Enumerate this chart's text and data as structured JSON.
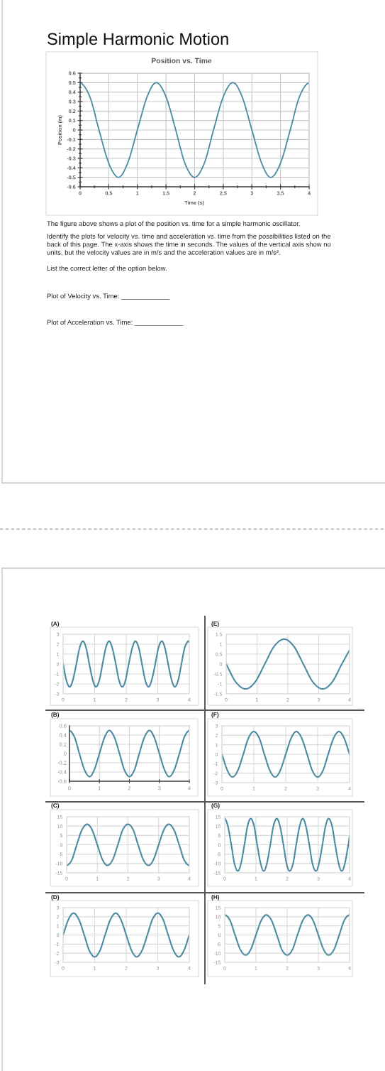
{
  "chart_data": [
    {
      "type": "line",
      "title": "Position vs. Time",
      "xlabel": "Time (s)",
      "ylabel": "Position (m)",
      "annotations": [
        "Simple Harmonic Motion",
        "The figure above shows a plot of the position vs. time for a simple harmonic oscillator.",
        "Identify the plots for velocity vs. time and acceleration vs. time from the possibilities listed on the\nback of this page. The x-axis shows the time in seconds. The values of the vertical axis show no\nunits, but the velocity values are in m/s and the acceleration values are in m/s².",
        "List the correct letter of the option below.",
        "Plot of Velocity vs. Time: _____________",
        "Plot of Acceleration vs. Time: _____________"
      ],
      "x": [
        0,
        0.17,
        0.33,
        0.5,
        0.67,
        0.83,
        1,
        1.17,
        1.33,
        1.5,
        1.67,
        1.83,
        2,
        2.17,
        2.33,
        2.5,
        2.67,
        2.83,
        3,
        3.17,
        3.33,
        3.5,
        3.67,
        3.83,
        4
      ],
      "series": [
        {
          "color": "#4a8aa3",
          "values": [
            0.5,
            0.35,
            0,
            -0.35,
            -0.5,
            -0.35,
            0,
            0.35,
            0.5,
            0.35,
            0,
            -0.35,
            -0.5,
            -0.35,
            0,
            0.35,
            0.5,
            0.35,
            0,
            -0.35,
            -0.5,
            -0.35,
            0,
            0.35,
            0.5
          ]
        }
      ],
      "xlim": [
        0,
        4
      ],
      "ylim": [
        -0.6,
        0.6
      ],
      "xticks": [
        0,
        0.5,
        1,
        1.5,
        2,
        2.5,
        3,
        3.5,
        4
      ],
      "yticks": [
        -0.6,
        -0.5,
        -0.4,
        -0.3,
        -0.2,
        -0.1,
        0,
        0.1,
        0.2,
        0.3,
        0.4,
        0.5,
        0.6
      ],
      "grid": true
    },
    {
      "type": "line",
      "title": "(A)",
      "x": [
        0,
        0.1,
        0.21,
        0.31,
        0.42,
        0.52,
        0.63,
        0.73,
        0.83,
        0.94,
        1.04,
        1.15,
        1.25,
        1.35,
        1.46,
        1.56,
        1.67,
        1.77,
        1.88,
        1.98,
        2.08,
        2.19,
        2.29,
        2.4,
        2.5,
        2.6,
        2.71,
        2.81,
        2.92,
        3.02,
        3.13,
        3.23,
        3.33,
        3.44,
        3.54,
        3.65,
        3.75,
        3.85,
        3.96,
        4
      ],
      "series": [
        {
          "color": "#4a8aa3",
          "values": [
            0,
            -1.6,
            -2.3,
            -1.6,
            0,
            1.6,
            2.3,
            1.6,
            0,
            -1.6,
            -2.3,
            -1.6,
            0,
            1.6,
            2.3,
            1.6,
            0,
            -1.6,
            -2.3,
            -1.6,
            0,
            1.6,
            2.3,
            1.6,
            0,
            -1.6,
            -2.3,
            -1.6,
            0,
            1.6,
            2.3,
            1.6,
            0,
            -1.6,
            -2.3,
            -1.6,
            0,
            1.6,
            2.3,
            2.2
          ]
        }
      ],
      "xlim": [
        0,
        4
      ],
      "ylim": [
        -3,
        3
      ],
      "xticks": [
        0,
        1,
        2,
        3,
        4
      ],
      "yticks": [
        -3,
        -2,
        -1,
        0,
        1,
        2,
        3
      ],
      "grid": true
    },
    {
      "type": "line",
      "title": "(B)",
      "x": [
        0,
        0.17,
        0.33,
        0.5,
        0.67,
        0.83,
        1,
        1.17,
        1.33,
        1.5,
        1.67,
        1.83,
        2,
        2.17,
        2.33,
        2.5,
        2.67,
        2.83,
        3,
        3.17,
        3.33,
        3.5,
        3.67,
        3.83,
        4
      ],
      "series": [
        {
          "color": "#4a8aa3",
          "values": [
            0.5,
            0.35,
            0,
            -0.35,
            -0.5,
            -0.35,
            0,
            0.35,
            0.5,
            0.35,
            0,
            -0.35,
            -0.5,
            -0.35,
            0,
            0.35,
            0.5,
            0.35,
            0,
            -0.35,
            -0.5,
            -0.35,
            0,
            0.35,
            0.5
          ]
        }
      ],
      "xlim": [
        0,
        4
      ],
      "ylim": [
        -0.6,
        0.6
      ],
      "xticks": [
        0,
        1,
        2,
        3,
        4
      ],
      "yticks": [
        -0.6,
        -0.4,
        -0.2,
        0,
        0.2,
        0.4,
        0.6
      ],
      "grid": true
    },
    {
      "type": "line",
      "title": "(C)",
      "x": [
        0,
        0.17,
        0.33,
        0.5,
        0.67,
        0.83,
        1,
        1.17,
        1.33,
        1.5,
        1.67,
        1.83,
        2,
        2.17,
        2.33,
        2.5,
        2.67,
        2.83,
        3,
        3.17,
        3.33,
        3.5,
        3.67,
        3.83,
        4
      ],
      "series": [
        {
          "color": "#4a8aa3",
          "values": [
            -11,
            -8,
            0,
            8,
            11,
            8,
            0,
            -8,
            -11,
            -8,
            0,
            8,
            11,
            8,
            0,
            -8,
            -11,
            -8,
            0,
            8,
            11,
            8,
            0,
            -8,
            -11
          ]
        }
      ],
      "xlim": [
        0,
        4
      ],
      "ylim": [
        -15,
        15
      ],
      "xticks": [
        0,
        1,
        2,
        3,
        4
      ],
      "yticks": [
        -15,
        -10,
        -5,
        0,
        5,
        10,
        15
      ],
      "grid": true
    },
    {
      "type": "line",
      "title": "(D)",
      "x": [
        0,
        0.17,
        0.33,
        0.5,
        0.67,
        0.83,
        1,
        1.17,
        1.33,
        1.5,
        1.67,
        1.83,
        2,
        2.17,
        2.33,
        2.5,
        2.67,
        2.83,
        3,
        3.17,
        3.33,
        3.5,
        3.67,
        3.83,
        4
      ],
      "series": [
        {
          "color": "#4a8aa3",
          "values": [
            0,
            1.7,
            2.4,
            1.7,
            0,
            -1.7,
            -2.4,
            -1.7,
            0,
            1.7,
            2.4,
            1.7,
            0,
            -1.7,
            -2.4,
            -1.7,
            0,
            1.7,
            2.4,
            1.7,
            0,
            -1.7,
            -2.4,
            -1.7,
            0
          ]
        }
      ],
      "xlim": [
        0,
        4
      ],
      "ylim": [
        -3,
        3
      ],
      "xticks": [
        0,
        1,
        2,
        3,
        4
      ],
      "yticks": [
        -3,
        -2,
        -1,
        0,
        1,
        2,
        3
      ],
      "grid": true
    },
    {
      "type": "line",
      "title": "(E)",
      "x": [
        0,
        0.31,
        0.63,
        0.94,
        1.25,
        1.56,
        1.88,
        2.19,
        2.5,
        2.81,
        3.13,
        3.44,
        3.75,
        4
      ],
      "series": [
        {
          "color": "#4a8aa3",
          "values": [
            0,
            -0.9,
            -1.25,
            -0.9,
            0,
            0.9,
            1.25,
            0.9,
            0,
            -0.9,
            -1.25,
            -0.9,
            0,
            0.7
          ]
        }
      ],
      "xlim": [
        0,
        4
      ],
      "ylim": [
        -1.5,
        1.5
      ],
      "xticks": [
        0,
        1,
        2,
        3,
        4
      ],
      "yticks": [
        -1.5,
        -1,
        -0.5,
        0,
        0.5,
        1,
        1.5
      ],
      "grid": true
    },
    {
      "type": "line",
      "title": "(F)",
      "x": [
        0,
        0.17,
        0.33,
        0.5,
        0.67,
        0.83,
        1,
        1.17,
        1.33,
        1.5,
        1.67,
        1.83,
        2,
        2.17,
        2.33,
        2.5,
        2.67,
        2.83,
        3,
        3.17,
        3.33,
        3.5,
        3.67,
        3.83,
        4
      ],
      "series": [
        {
          "color": "#4a8aa3",
          "values": [
            0,
            -1.7,
            -2.4,
            -1.7,
            0,
            1.7,
            2.4,
            1.7,
            0,
            -1.7,
            -2.4,
            -1.7,
            0,
            1.7,
            2.4,
            1.7,
            0,
            -1.7,
            -2.4,
            -1.7,
            0,
            1.7,
            2.4,
            1.7,
            0
          ]
        }
      ],
      "xlim": [
        0,
        4
      ],
      "ylim": [
        -3,
        3
      ],
      "xticks": [
        0,
        1,
        2,
        3,
        4
      ],
      "yticks": [
        -3,
        -2,
        -1,
        0,
        1,
        2,
        3
      ],
      "grid": true
    },
    {
      "type": "line",
      "title": "(G)",
      "x": [
        0,
        0.1,
        0.21,
        0.31,
        0.42,
        0.52,
        0.63,
        0.73,
        0.83,
        0.94,
        1.04,
        1.15,
        1.25,
        1.35,
        1.46,
        1.56,
        1.67,
        1.77,
        1.88,
        1.98,
        2.08,
        2.19,
        2.29,
        2.4,
        2.5,
        2.6,
        2.71,
        2.81,
        2.92,
        3.02,
        3.13,
        3.23,
        3.33,
        3.44,
        3.54,
        3.65,
        3.75,
        3.85,
        3.96,
        4
      ],
      "series": [
        {
          "color": "#4a8aa3",
          "values": [
            14,
            10,
            0,
            -10,
            -14,
            -10,
            0,
            10,
            14,
            10,
            0,
            -10,
            -14,
            -10,
            0,
            10,
            14,
            10,
            0,
            -10,
            -14,
            -10,
            0,
            10,
            14,
            10,
            0,
            -10,
            -14,
            -10,
            0,
            10,
            14,
            10,
            0,
            -10,
            -14,
            -10,
            0,
            4.5
          ]
        }
      ],
      "xlim": [
        0,
        4
      ],
      "ylim": [
        -15,
        15
      ],
      "xticks": [
        0,
        1,
        2,
        3,
        4
      ],
      "yticks": [
        -15,
        -10,
        -5,
        0,
        5,
        10,
        15
      ],
      "grid": true
    },
    {
      "type": "line",
      "title": "(H)",
      "x": [
        0,
        0.17,
        0.33,
        0.5,
        0.67,
        0.83,
        1,
        1.17,
        1.33,
        1.5,
        1.67,
        1.83,
        2,
        2.17,
        2.33,
        2.5,
        2.67,
        2.83,
        3,
        3.17,
        3.33,
        3.5,
        3.67,
        3.83,
        4
      ],
      "series": [
        {
          "color": "#4a8aa3",
          "values": [
            11,
            8,
            0,
            -8,
            -11,
            -8,
            0,
            8,
            11,
            8,
            0,
            -8,
            -11,
            -8,
            0,
            8,
            11,
            8,
            0,
            -8,
            -11,
            -8,
            0,
            8,
            11
          ]
        }
      ],
      "xlim": [
        0,
        4
      ],
      "ylim": [
        -15,
        15
      ],
      "xticks": [
        0,
        1,
        2,
        3,
        4
      ],
      "yticks": [
        -15,
        -10,
        -5,
        0,
        5,
        10,
        15
      ],
      "grid": true
    }
  ]
}
